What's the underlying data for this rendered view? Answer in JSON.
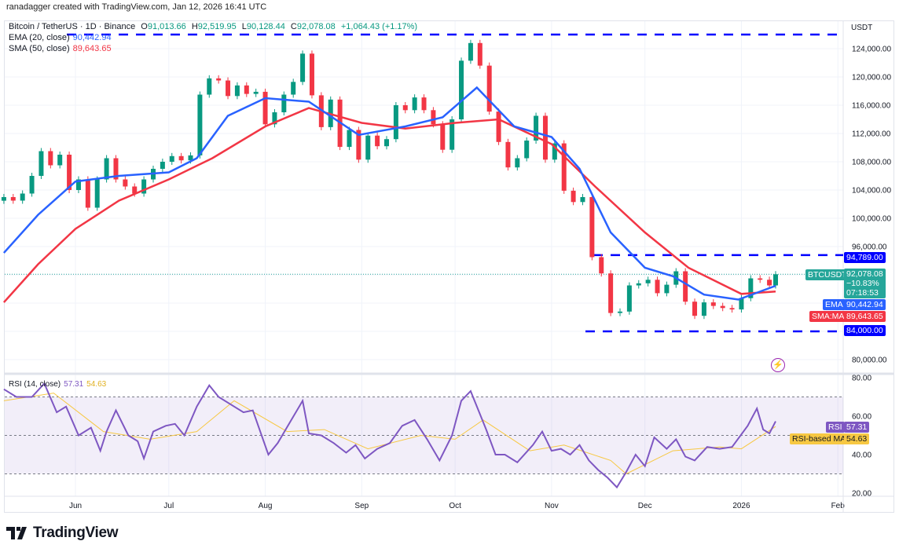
{
  "credit": "ranadagger created with TradingView.com, Jan 12, 2026 16:41 UTC",
  "legend": {
    "symbol": "Bitcoin / TetherUS · 1D · Binance",
    "open_label": "O",
    "open": "91,013.66",
    "high_label": "H",
    "high": "92,519.95",
    "low_label": "L",
    "low": "90,128.44",
    "close_label": "C",
    "close": "92,078.08",
    "change": "+1,064.43 (+1.17%)",
    "ema_label": "EMA (20, close)",
    "ema_value": "90,442.94",
    "sma_label": "SMA (50, close)",
    "sma_value": "89,643.65",
    "rsi_label": "RSI (14, close)",
    "rsi_value": "57.31",
    "rsi_ma_value": "54.63"
  },
  "price_axis": {
    "currency": "USDT",
    "ticks": [
      "124,000.00",
      "120,000.00",
      "116,000.00",
      "112,000.00",
      "108,000.00",
      "104,000.00",
      "100,000.00",
      "96,000.00",
      "80,000.00"
    ],
    "tick_values": [
      124000,
      120000,
      116000,
      112000,
      108000,
      104000,
      100000,
      96000,
      80000
    ],
    "grid_values": [
      124000,
      120000,
      116000,
      112000,
      108000,
      104000,
      100000,
      96000,
      92000,
      88000,
      84000,
      80000
    ]
  },
  "rsi_axis": {
    "ticks": [
      "80.00",
      "60.00",
      "40.00",
      "20.00"
    ],
    "tick_values": [
      80,
      60,
      40,
      20
    ],
    "band": [
      30,
      70
    ],
    "mid": 50
  },
  "time_axis": {
    "labels": [
      "Jun",
      "Jul",
      "Aug",
      "Sep",
      "Oct",
      "Nov",
      "Dec",
      "2026",
      "Feb"
    ],
    "dates": [
      "2025-06-01",
      "2025-07-01",
      "2025-08-01",
      "2025-09-01",
      "2025-10-01",
      "2025-11-01",
      "2025-12-01",
      "2026-01-01",
      "2026-02-01"
    ]
  },
  "price_labels": {
    "resistance": "94,789.00",
    "symbol_tag": "BTCUSDT",
    "last_price": "92,078.08",
    "last_change": "−10.83%",
    "countdown": "07:18:53",
    "ema_tag": "EMA",
    "ema": "90,442.94",
    "sma_tag": "SMA:MA",
    "sma": "89,643.65",
    "support": "84,000.00",
    "rsi_tag": "RSI",
    "rsi": "57.31",
    "rsi_ma_tag": "RSI-based MA",
    "rsi_ma": "54.63"
  },
  "colors": {
    "up": "#089981",
    "down": "#f23645",
    "ema": "#2962ff",
    "sma": "#f23645",
    "rsi": "#7e57c2",
    "rsi_ma": "#f7c843",
    "levels": "#0000ff",
    "last": "#26a69a"
  },
  "brand": "TradingView",
  "icons": {
    "alert": "lightning-icon",
    "logo": "tradingview-logo-icon"
  },
  "chart_data": {
    "type": "candlestick",
    "symbol": "BTCUSDT",
    "interval": "1D",
    "y_scale": "linear",
    "ylim": [
      78000,
      127000
    ],
    "grid": true,
    "horizontal_levels": [
      126000,
      94789,
      84000
    ],
    "closes": [
      [
        "2025-05-09",
        103000
      ],
      [
        "2025-05-12",
        102500
      ],
      [
        "2025-05-15",
        103500
      ],
      [
        "2025-05-18",
        106000
      ],
      [
        "2025-05-21",
        109500
      ],
      [
        "2025-05-24",
        107500
      ],
      [
        "2025-05-27",
        109000
      ],
      [
        "2025-05-30",
        104000
      ],
      [
        "2025-06-02",
        105500
      ],
      [
        "2025-06-05",
        101500
      ],
      [
        "2025-06-08",
        105500
      ],
      [
        "2025-06-11",
        108500
      ],
      [
        "2025-06-14",
        105500
      ],
      [
        "2025-06-17",
        104500
      ],
      [
        "2025-06-20",
        103500
      ],
      [
        "2025-06-23",
        105500
      ],
      [
        "2025-06-26",
        107000
      ],
      [
        "2025-06-29",
        108000
      ],
      [
        "2025-07-02",
        108800
      ],
      [
        "2025-07-05",
        108200
      ],
      [
        "2025-07-08",
        108900
      ],
      [
        "2025-07-11",
        117500
      ],
      [
        "2025-07-14",
        119800
      ],
      [
        "2025-07-17",
        119500
      ],
      [
        "2025-07-20",
        117300
      ],
      [
        "2025-07-23",
        118800
      ],
      [
        "2025-07-26",
        117600
      ],
      [
        "2025-07-29",
        117900
      ],
      [
        "2025-08-01",
        113300
      ],
      [
        "2025-08-04",
        115000
      ],
      [
        "2025-08-07",
        117500
      ],
      [
        "2025-08-10",
        119300
      ],
      [
        "2025-08-13",
        123300
      ],
      [
        "2025-08-16",
        117400
      ],
      [
        "2025-08-19",
        112900
      ],
      [
        "2025-08-22",
        116800
      ],
      [
        "2025-08-25",
        110100
      ],
      [
        "2025-08-28",
        112500
      ],
      [
        "2025-08-31",
        108300
      ],
      [
        "2025-09-03",
        111700
      ],
      [
        "2025-09-06",
        110200
      ],
      [
        "2025-09-09",
        111200
      ],
      [
        "2025-09-12",
        116000
      ],
      [
        "2025-09-15",
        115300
      ],
      [
        "2025-09-18",
        117100
      ],
      [
        "2025-09-21",
        115300
      ],
      [
        "2025-09-24",
        113300
      ],
      [
        "2025-09-27",
        109700
      ],
      [
        "2025-09-30",
        114000
      ],
      [
        "2025-10-03",
        122300
      ],
      [
        "2025-10-06",
        124800
      ],
      [
        "2025-10-09",
        121600
      ],
      [
        "2025-10-12",
        115100
      ],
      [
        "2025-10-15",
        110800
      ],
      [
        "2025-10-18",
        107200
      ],
      [
        "2025-10-21",
        108500
      ],
      [
        "2025-10-24",
        111000
      ],
      [
        "2025-10-27",
        114500
      ],
      [
        "2025-10-30",
        108300
      ],
      [
        "2025-11-02",
        110600
      ],
      [
        "2025-11-05",
        103900
      ],
      [
        "2025-11-08",
        102300
      ],
      [
        "2025-11-11",
        103000
      ],
      [
        "2025-11-14",
        94500
      ],
      [
        "2025-11-17",
        92200
      ],
      [
        "2025-11-20",
        86600
      ],
      [
        "2025-11-23",
        86800
      ],
      [
        "2025-11-26",
        90500
      ],
      [
        "2025-11-29",
        90800
      ],
      [
        "2025-12-02",
        91300
      ],
      [
        "2025-12-05",
        89400
      ],
      [
        "2025-12-08",
        90600
      ],
      [
        "2025-12-11",
        92500
      ],
      [
        "2025-12-14",
        88200
      ],
      [
        "2025-12-17",
        86200
      ],
      [
        "2025-12-20",
        88100
      ],
      [
        "2025-12-23",
        87600
      ],
      [
        "2025-12-26",
        87300
      ],
      [
        "2025-12-29",
        87100
      ],
      [
        "2026-01-01",
        88700
      ],
      [
        "2026-01-04",
        91500
      ],
      [
        "2026-01-07",
        91300
      ],
      [
        "2026-01-10",
        90500
      ],
      [
        "2026-01-12",
        92078.08
      ]
    ],
    "ema20": [
      [
        "2025-05-09",
        95100
      ],
      [
        "2025-05-20",
        100500
      ],
      [
        "2025-06-01",
        105200
      ],
      [
        "2025-06-15",
        106000
      ],
      [
        "2025-07-01",
        106500
      ],
      [
        "2025-07-10",
        108500
      ],
      [
        "2025-07-20",
        114500
      ],
      [
        "2025-08-01",
        117000
      ],
      [
        "2025-08-15",
        116500
      ],
      [
        "2025-08-31",
        111800
      ],
      [
        "2025-09-15",
        113000
      ],
      [
        "2025-09-27",
        114300
      ],
      [
        "2025-10-08",
        118500
      ],
      [
        "2025-10-20",
        113000
      ],
      [
        "2025-11-01",
        111500
      ],
      [
        "2025-11-10",
        107000
      ],
      [
        "2025-11-20",
        98000
      ],
      [
        "2025-12-01",
        93000
      ],
      [
        "2025-12-10",
        91800
      ],
      [
        "2025-12-20",
        89200
      ],
      [
        "2025-12-31",
        88500
      ],
      [
        "2026-01-12",
        90442.94
      ]
    ],
    "sma50": [
      [
        "2025-05-09",
        88100
      ],
      [
        "2025-05-20",
        93500
      ],
      [
        "2025-06-01",
        98500
      ],
      [
        "2025-06-15",
        102500
      ],
      [
        "2025-07-01",
        105500
      ],
      [
        "2025-07-15",
        108500
      ],
      [
        "2025-08-01",
        113000
      ],
      [
        "2025-08-15",
        115600
      ],
      [
        "2025-09-01",
        113500
      ],
      [
        "2025-09-15",
        112700
      ],
      [
        "2025-10-01",
        113500
      ],
      [
        "2025-10-15",
        114000
      ],
      [
        "2025-11-01",
        110500
      ],
      [
        "2025-11-15",
        104500
      ],
      [
        "2025-12-01",
        98000
      ],
      [
        "2025-12-15",
        93000
      ],
      [
        "2026-01-01",
        89300
      ],
      [
        "2026-01-12",
        89643.65
      ]
    ],
    "rsi14": [
      [
        "2025-05-09",
        74
      ],
      [
        "2025-05-13",
        70
      ],
      [
        "2025-05-18",
        70
      ],
      [
        "2025-05-22",
        77
      ],
      [
        "2025-05-26",
        62
      ],
      [
        "2025-05-29",
        65
      ],
      [
        "2025-06-02",
        50
      ],
      [
        "2025-06-06",
        54
      ],
      [
        "2025-06-09",
        42
      ],
      [
        "2025-06-11",
        52
      ],
      [
        "2025-06-14",
        63
      ],
      [
        "2025-06-18",
        50
      ],
      [
        "2025-06-21",
        47
      ],
      [
        "2025-06-23",
        38
      ],
      [
        "2025-06-26",
        52
      ],
      [
        "2025-06-30",
        55
      ],
      [
        "2025-07-03",
        56
      ],
      [
        "2025-07-06",
        50
      ],
      [
        "2025-07-10",
        65
      ],
      [
        "2025-07-14",
        76
      ],
      [
        "2025-07-17",
        70
      ],
      [
        "2025-07-21",
        66
      ],
      [
        "2025-07-25",
        62
      ],
      [
        "2025-07-28",
        63
      ],
      [
        "2025-08-02",
        40
      ],
      [
        "2025-08-05",
        46
      ],
      [
        "2025-08-09",
        57
      ],
      [
        "2025-08-13",
        68
      ],
      [
        "2025-08-15",
        51
      ],
      [
        "2025-08-19",
        50
      ],
      [
        "2025-08-23",
        46
      ],
      [
        "2025-08-27",
        41
      ],
      [
        "2025-08-30",
        45
      ],
      [
        "2025-09-02",
        38
      ],
      [
        "2025-09-06",
        43
      ],
      [
        "2025-09-10",
        46
      ],
      [
        "2025-09-14",
        55
      ],
      [
        "2025-09-18",
        58
      ],
      [
        "2025-09-22",
        48
      ],
      [
        "2025-09-26",
        37
      ],
      [
        "2025-09-30",
        50
      ],
      [
        "2025-10-03",
        68
      ],
      [
        "2025-10-06",
        73
      ],
      [
        "2025-10-09",
        61
      ],
      [
        "2025-10-11",
        53
      ],
      [
        "2025-10-14",
        40
      ],
      [
        "2025-10-17",
        40
      ],
      [
        "2025-10-21",
        36
      ],
      [
        "2025-10-26",
        45
      ],
      [
        "2025-10-29",
        52
      ],
      [
        "2025-11-01",
        42
      ],
      [
        "2025-11-04",
        43
      ],
      [
        "2025-11-07",
        40
      ],
      [
        "2025-11-10",
        45
      ],
      [
        "2025-11-13",
        37
      ],
      [
        "2025-11-16",
        32
      ],
      [
        "2025-11-19",
        28
      ],
      [
        "2025-11-22",
        23
      ],
      [
        "2025-11-25",
        31
      ],
      [
        "2025-11-28",
        40
      ],
      [
        "2025-12-01",
        34
      ],
      [
        "2025-12-04",
        49
      ],
      [
        "2025-12-08",
        43
      ],
      [
        "2025-12-11",
        48
      ],
      [
        "2025-12-14",
        39
      ],
      [
        "2025-12-17",
        37
      ],
      [
        "2025-12-21",
        44
      ],
      [
        "2025-12-25",
        43
      ],
      [
        "2025-12-29",
        44
      ],
      [
        "2026-01-03",
        55
      ],
      [
        "2026-01-06",
        64
      ],
      [
        "2026-01-08",
        53
      ],
      [
        "2026-01-10",
        51
      ],
      [
        "2026-01-12",
        57.31
      ]
    ],
    "rsi_ma": [
      [
        "2025-05-09",
        68
      ],
      [
        "2025-05-25",
        72
      ],
      [
        "2025-06-10",
        52
      ],
      [
        "2025-06-25",
        48
      ],
      [
        "2025-07-10",
        52
      ],
      [
        "2025-07-22",
        68
      ],
      [
        "2025-08-08",
        52
      ],
      [
        "2025-08-20",
        53
      ],
      [
        "2025-09-03",
        43
      ],
      [
        "2025-09-20",
        50
      ],
      [
        "2025-10-01",
        48
      ],
      [
        "2025-10-10",
        58
      ],
      [
        "2025-10-25",
        42
      ],
      [
        "2025-11-05",
        45
      ],
      [
        "2025-11-20",
        37
      ],
      [
        "2025-11-25",
        30
      ],
      [
        "2025-12-10",
        42
      ],
      [
        "2025-12-25",
        44
      ],
      [
        "2026-01-01",
        43
      ],
      [
        "2026-01-12",
        54.63
      ]
    ]
  }
}
